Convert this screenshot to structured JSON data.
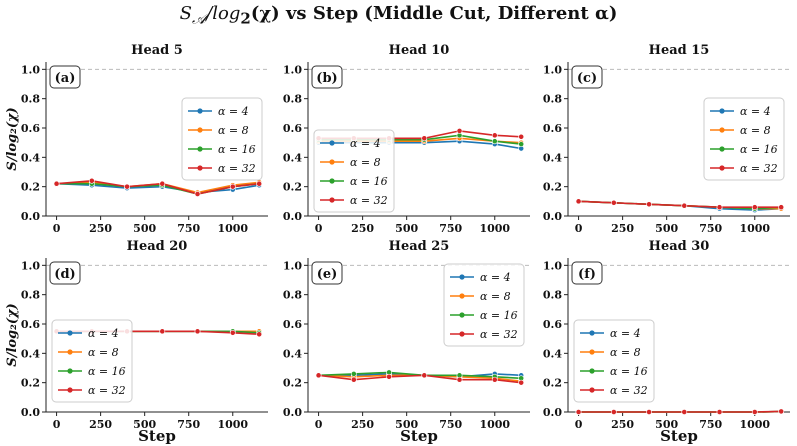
{
  "figure": {
    "title_prefix": "S",
    "title_sub": "𝒜",
    "title_mid": "/log",
    "title_sub2": "2",
    "title_chi": "(χ)",
    "title_rest": " vs Step (Middle Cut, Different α)",
    "xlabel": "Step",
    "ylabel": "S/log₂(χ)"
  },
  "legend_labels": [
    "α = 4",
    "α = 8",
    "α = 16",
    "α = 32"
  ],
  "colors": {
    "alpha4": "#1f77b4",
    "alpha8": "#ff7f0e",
    "alpha16": "#2ca02c",
    "alpha32": "#d62728",
    "ref_line": "#bbbbbb"
  },
  "chart_data": [
    {
      "type": "line",
      "panel_label": "(a)",
      "title": "Head 5",
      "x": [
        0,
        200,
        400,
        600,
        800,
        1000,
        1150
      ],
      "xticks": [
        0,
        250,
        500,
        750,
        1000
      ],
      "yticks": [
        0.0,
        0.2,
        0.4,
        0.6,
        0.8,
        1.0
      ],
      "xlim": [
        -60,
        1200
      ],
      "ylim": [
        0,
        1.05
      ],
      "legend": "center-right",
      "series": [
        {
          "name": "α = 4",
          "values": [
            0.22,
            0.21,
            0.19,
            0.2,
            0.16,
            0.18,
            0.21
          ]
        },
        {
          "name": "α = 8",
          "values": [
            0.22,
            0.23,
            0.2,
            0.22,
            0.16,
            0.21,
            0.23
          ]
        },
        {
          "name": "α = 16",
          "values": [
            0.22,
            0.22,
            0.2,
            0.21,
            0.15,
            0.2,
            0.22
          ]
        },
        {
          "name": "α = 32",
          "values": [
            0.22,
            0.24,
            0.2,
            0.22,
            0.15,
            0.2,
            0.22
          ]
        }
      ]
    },
    {
      "type": "line",
      "panel_label": "(b)",
      "title": "Head 10",
      "x": [
        0,
        200,
        400,
        600,
        800,
        1000,
        1150
      ],
      "xticks": [
        0,
        250,
        500,
        750,
        1000
      ],
      "yticks": [
        0.0,
        0.2,
        0.4,
        0.6,
        0.8,
        1.0
      ],
      "xlim": [
        -60,
        1200
      ],
      "ylim": [
        0,
        1.05
      ],
      "legend": "center-left",
      "series": [
        {
          "name": "α = 4",
          "values": [
            0.5,
            0.5,
            0.5,
            0.5,
            0.51,
            0.49,
            0.46
          ]
        },
        {
          "name": "α = 8",
          "values": [
            0.51,
            0.51,
            0.51,
            0.51,
            0.53,
            0.51,
            0.5
          ]
        },
        {
          "name": "α = 16",
          "values": [
            0.52,
            0.52,
            0.52,
            0.52,
            0.55,
            0.51,
            0.49
          ]
        },
        {
          "name": "α = 32",
          "values": [
            0.53,
            0.53,
            0.53,
            0.53,
            0.58,
            0.55,
            0.54
          ]
        }
      ]
    },
    {
      "type": "line",
      "panel_label": "(c)",
      "title": "Head 15",
      "x": [
        0,
        200,
        400,
        600,
        800,
        1000,
        1150
      ],
      "xticks": [
        0,
        250,
        500,
        750,
        1000
      ],
      "yticks": [
        0.0,
        0.2,
        0.4,
        0.6,
        0.8,
        1.0
      ],
      "xlim": [
        -60,
        1200
      ],
      "ylim": [
        0,
        1.05
      ],
      "legend": "center-right",
      "series": [
        {
          "name": "α = 4",
          "values": [
            0.1,
            0.09,
            0.08,
            0.07,
            0.05,
            0.04,
            0.05
          ]
        },
        {
          "name": "α = 8",
          "values": [
            0.1,
            0.09,
            0.08,
            0.07,
            0.06,
            0.05,
            0.05
          ]
        },
        {
          "name": "α = 16",
          "values": [
            0.1,
            0.09,
            0.08,
            0.07,
            0.06,
            0.05,
            0.06
          ]
        },
        {
          "name": "α = 32",
          "values": [
            0.1,
            0.09,
            0.08,
            0.07,
            0.06,
            0.06,
            0.06
          ]
        }
      ]
    },
    {
      "type": "line",
      "panel_label": "(d)",
      "title": "Head 20",
      "x": [
        0,
        200,
        400,
        600,
        800,
        1000,
        1150
      ],
      "xticks": [
        0,
        250,
        500,
        750,
        1000
      ],
      "yticks": [
        0.0,
        0.2,
        0.4,
        0.6,
        0.8,
        1.0
      ],
      "xlim": [
        -60,
        1200
      ],
      "ylim": [
        0,
        1.05
      ],
      "legend": "lower-left",
      "series": [
        {
          "name": "α = 4",
          "values": [
            0.55,
            0.55,
            0.55,
            0.55,
            0.55,
            0.55,
            0.54
          ]
        },
        {
          "name": "α = 8",
          "values": [
            0.55,
            0.55,
            0.55,
            0.55,
            0.55,
            0.55,
            0.55
          ]
        },
        {
          "name": "α = 16",
          "values": [
            0.55,
            0.55,
            0.55,
            0.55,
            0.55,
            0.55,
            0.54
          ]
        },
        {
          "name": "α = 32",
          "values": [
            0.55,
            0.55,
            0.55,
            0.55,
            0.55,
            0.54,
            0.53
          ]
        }
      ]
    },
    {
      "type": "line",
      "panel_label": "(e)",
      "title": "Head 25",
      "x": [
        0,
        200,
        400,
        600,
        800,
        1000,
        1150
      ],
      "xticks": [
        0,
        250,
        500,
        750,
        1000
      ],
      "yticks": [
        0.0,
        0.2,
        0.4,
        0.6,
        0.8,
        1.0
      ],
      "xlim": [
        -60,
        1200
      ],
      "ylim": [
        0,
        1.05
      ],
      "legend": "upper-right",
      "series": [
        {
          "name": "α = 4",
          "values": [
            0.25,
            0.25,
            0.26,
            0.25,
            0.24,
            0.26,
            0.25
          ]
        },
        {
          "name": "α = 8",
          "values": [
            0.25,
            0.24,
            0.25,
            0.25,
            0.24,
            0.23,
            0.21
          ]
        },
        {
          "name": "α = 16",
          "values": [
            0.25,
            0.26,
            0.27,
            0.25,
            0.25,
            0.24,
            0.23
          ]
        },
        {
          "name": "α = 32",
          "values": [
            0.25,
            0.22,
            0.24,
            0.25,
            0.22,
            0.22,
            0.2
          ]
        }
      ]
    },
    {
      "type": "line",
      "panel_label": "(f)",
      "title": "Head 30",
      "x": [
        0,
        200,
        400,
        600,
        800,
        1000,
        1150
      ],
      "xticks": [
        0,
        250,
        500,
        750,
        1000
      ],
      "yticks": [
        0.0,
        0.2,
        0.4,
        0.6,
        0.8,
        1.0
      ],
      "xlim": [
        -60,
        1200
      ],
      "ylim": [
        0,
        1.05
      ],
      "legend": "lower-left",
      "series": [
        {
          "name": "α = 4",
          "values": [
            0.0,
            0.0,
            0.0,
            0.0,
            0.0,
            0.0,
            0.003
          ]
        },
        {
          "name": "α = 8",
          "values": [
            0.0,
            0.0,
            0.0,
            0.0,
            0.0,
            0.0,
            0.003
          ]
        },
        {
          "name": "α = 16",
          "values": [
            0.0,
            0.0,
            0.0,
            0.0,
            0.0,
            0.0,
            0.003
          ]
        },
        {
          "name": "α = 32",
          "values": [
            0.0,
            0.0,
            0.0,
            0.0,
            0.0,
            0.0,
            0.004
          ]
        }
      ]
    }
  ]
}
